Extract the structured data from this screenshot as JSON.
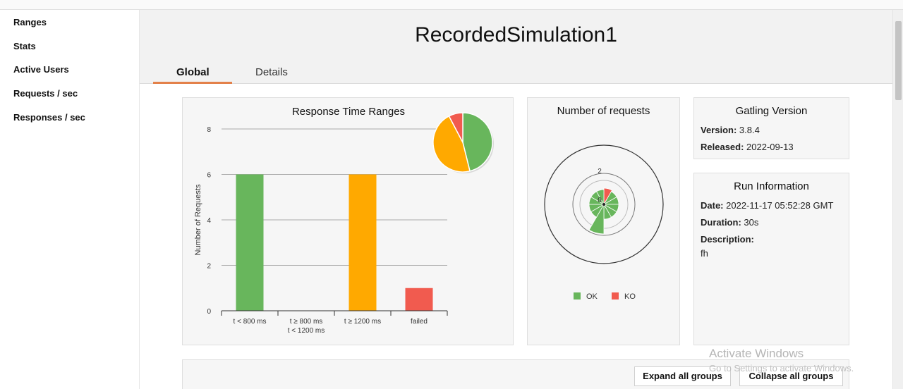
{
  "sidebar": {
    "items": [
      {
        "label": "Ranges"
      },
      {
        "label": "Stats"
      },
      {
        "label": "Active Users"
      },
      {
        "label": "Requests / sec"
      },
      {
        "label": "Responses / sec"
      }
    ]
  },
  "header": {
    "title": "RecordedSimulation1",
    "tabs": [
      {
        "label": "Global",
        "active": true
      },
      {
        "label": "Details",
        "active": false
      }
    ]
  },
  "response_time_ranges": {
    "title": "Response Time Ranges"
  },
  "number_of_requests": {
    "title": "Number of requests",
    "scale_labels": [
      "2",
      "0"
    ],
    "legend": [
      {
        "label": "OK",
        "color": "#68b65c"
      },
      {
        "label": "KO",
        "color": "#f15b4f"
      }
    ]
  },
  "gatling_version": {
    "title": "Gatling Version",
    "version_label": "Version:",
    "version_value": "3.8.4",
    "released_label": "Released:",
    "released_value": "2022-09-13"
  },
  "run_information": {
    "title": "Run Information",
    "date_label": "Date:",
    "date_value": "2022-11-17 05:52:28 GMT",
    "duration_label": "Duration:",
    "duration_value": "30s",
    "description_label": "Description:",
    "description_value": "fh"
  },
  "stats_controls": {
    "expand_label": "Expand all groups",
    "collapse_label": "Collapse all groups"
  },
  "watermark": {
    "line1": "Activate Windows",
    "line2": "Go to Settings to activate Windows."
  },
  "colors": {
    "ok": "#68b65c",
    "ko": "#f15b4f",
    "mid": "#ffa900",
    "accent": "#e3814a"
  },
  "chart_data": {
    "type": "bar",
    "title": "Response Time Ranges",
    "ylabel": "Number of Requests",
    "xlabel": "",
    "ylim": [
      0,
      8
    ],
    "yticks": [
      0,
      2,
      4,
      6,
      8
    ],
    "categories": [
      [
        "t < 800 ms"
      ],
      [
        "t ≥ 800 ms",
        "t < 1200 ms"
      ],
      [
        "t ≥ 1200 ms"
      ],
      [
        "failed"
      ]
    ],
    "values": [
      6,
      0,
      6,
      1
    ],
    "bar_colors": [
      "#68b65c",
      "#ffd319",
      "#ffa900",
      "#f15b4f"
    ],
    "pie": [
      {
        "value": 6,
        "color": "#68b65c"
      },
      {
        "value": 0,
        "color": "#ffd319"
      },
      {
        "value": 6,
        "color": "#ffa900"
      },
      {
        "value": 1,
        "color": "#f15b4f"
      }
    ]
  }
}
